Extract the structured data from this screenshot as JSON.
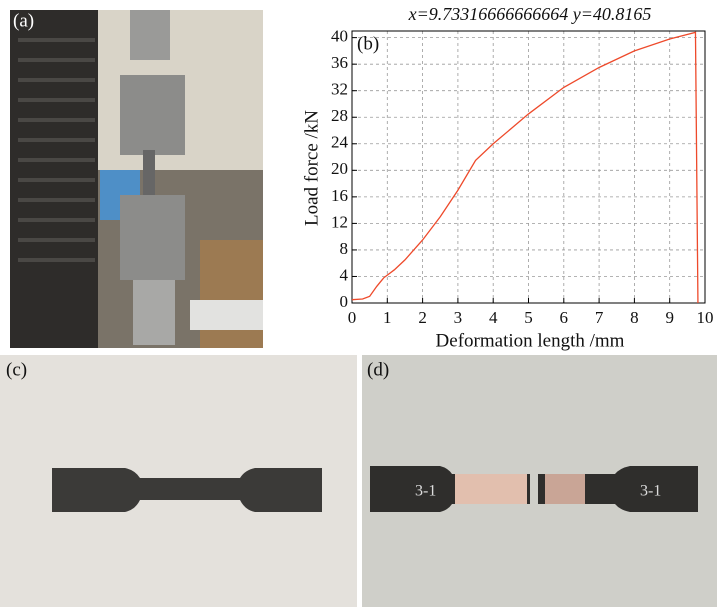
{
  "panels": {
    "a": "(a)",
    "c": "(c)",
    "d": "(d)",
    "d_marks": [
      "3-1",
      "3-1"
    ]
  },
  "chart_data": {
    "type": "line",
    "panel_label": "(b)",
    "annotation": "x=9.73316666666664 y=40.8165",
    "x_label": "Deformation length /mm",
    "y_label": "Load force /kN",
    "x": [
      0,
      0.3,
      0.5,
      0.7,
      0.9,
      1.2,
      1.5,
      2,
      2.5,
      3,
      3.5,
      4,
      5,
      6,
      7,
      8,
      9,
      9.73,
      9.8
    ],
    "values": [
      0.5,
      0.6,
      1,
      2.5,
      3.8,
      5,
      6.5,
      9.5,
      13,
      17,
      21.5,
      24,
      28.5,
      32.5,
      35.5,
      38,
      39.8,
      40.8,
      0
    ],
    "color": "#ee4a2b",
    "xlim": [
      0,
      10
    ],
    "ylim": [
      0,
      41
    ],
    "xticks": [
      0,
      1,
      2,
      3,
      4,
      5,
      6,
      7,
      8,
      9,
      10
    ],
    "yticks": [
      0,
      4,
      8,
      12,
      16,
      20,
      24,
      28,
      32,
      36,
      40
    ],
    "grid": true
  }
}
